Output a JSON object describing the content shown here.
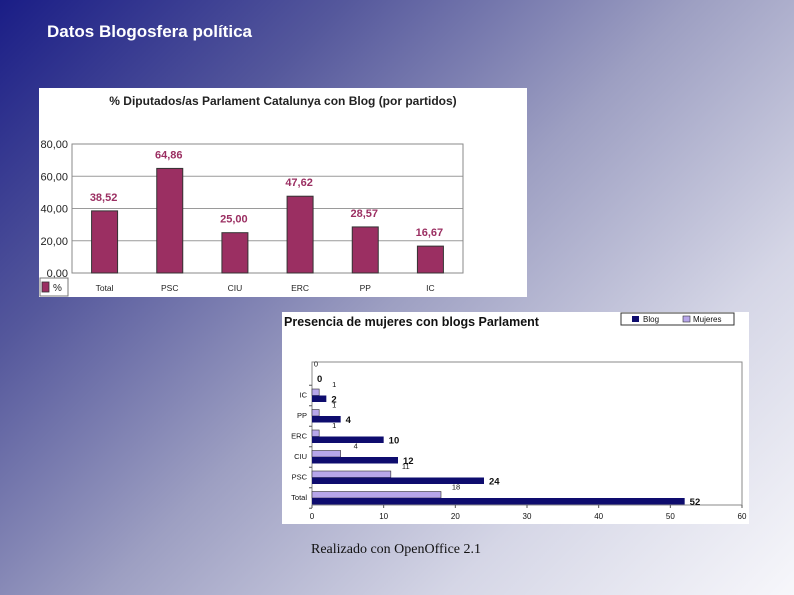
{
  "slide": {
    "title": "Datos Blogosfera política",
    "footer": "Realizado con OpenOffice 2.1"
  },
  "colors": {
    "bar1": "#9b2f62",
    "blog": "#0e0c6e",
    "mujeres": "#b7a6ea"
  },
  "chart_data": [
    {
      "type": "bar",
      "title": "% Diputados/as Parlament Catalunya con Blog (por partidos)",
      "categories": [
        "Total",
        "PSC",
        "CIU",
        "ERC",
        "PP",
        "IC"
      ],
      "values": [
        38.52,
        64.86,
        25.0,
        47.62,
        28.57,
        16.67
      ],
      "value_labels": [
        "38,52",
        "64,86",
        "25,00",
        "47,62",
        "28,57",
        "16,67"
      ],
      "ylim": [
        0,
        80
      ],
      "yticks": [
        "0,00",
        "20,00",
        "40,00",
        "60,00",
        "80,00"
      ],
      "legend": [
        "%"
      ],
      "grid": true
    },
    {
      "type": "bar",
      "orientation": "horizontal",
      "title": "Presencia de mujeres con blogs Parlament",
      "categories": [
        "Total",
        "PSC",
        "CIU",
        "ERC",
        "PP",
        "IC",
        ""
      ],
      "series": [
        {
          "name": "Blog",
          "values": [
            52,
            24,
            12,
            10,
            4,
            2,
            0
          ]
        },
        {
          "name": "Mujeres",
          "values": [
            18,
            11,
            4,
            1,
            1,
            1,
            0
          ]
        }
      ],
      "xlim": [
        0,
        60
      ],
      "xticks": [
        "0",
        "10",
        "20",
        "30",
        "40",
        "50",
        "60"
      ],
      "legend": [
        "Blog",
        "Mujeres"
      ]
    }
  ]
}
